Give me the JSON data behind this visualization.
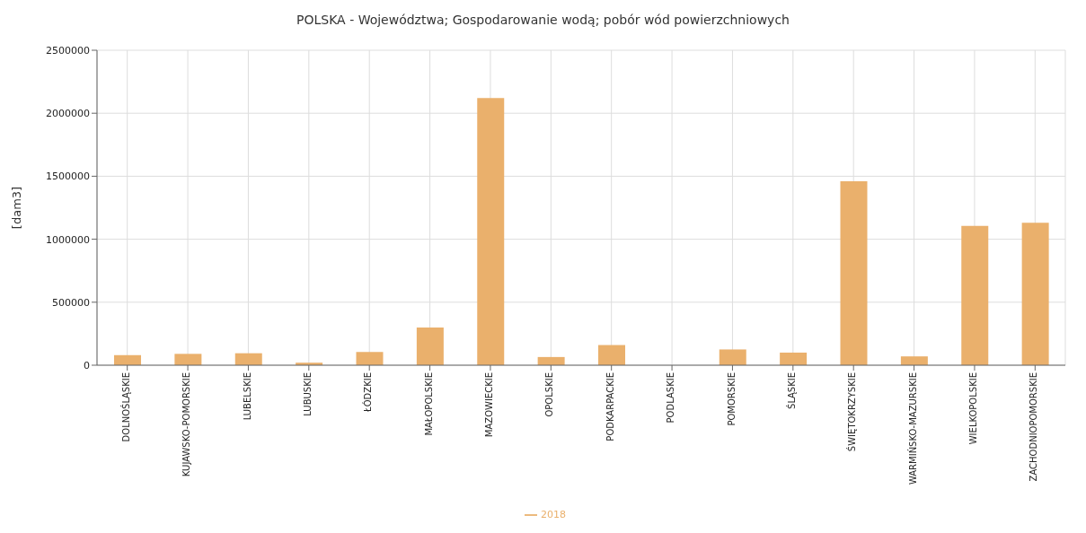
{
  "chart_data": {
    "type": "bar",
    "title": "POLSKA - Województwa; Gospodarowanie wodą; pobór wód powierzchniowych",
    "ylabel": "[dam3]",
    "categories": [
      "DOLNOŚLĄSKIE",
      "KUJAWSKO-POMORSKIE",
      "LUBELSKIE",
      "LUBUSKIE",
      "ŁÓDZKIE",
      "MAŁOPOLSKIE",
      "MAZOWIECKIE",
      "OPOLSKIE",
      "PODKARPACKIE",
      "PODLASKIE",
      "POMORSKIE",
      "ŚLĄSKIE",
      "ŚWIĘTOKRZYSKIE",
      "WARMIŃSKO-MAZURSKIE",
      "WIELKOPOLSKIE",
      "ZACHODNIOPOMORSKIE"
    ],
    "series": [
      {
        "name": "2018",
        "color": "#eab06c",
        "values": [
          80000,
          90000,
          95000,
          20000,
          105000,
          300000,
          2120000,
          65000,
          160000,
          null,
          125000,
          100000,
          1460000,
          70000,
          1105000,
          1130000
        ]
      }
    ],
    "ylim": [
      0,
      2500000
    ],
    "yticks": [
      0,
      500000,
      1000000,
      1500000,
      2000000,
      2500000
    ],
    "grid": true,
    "legend": "bottom"
  }
}
